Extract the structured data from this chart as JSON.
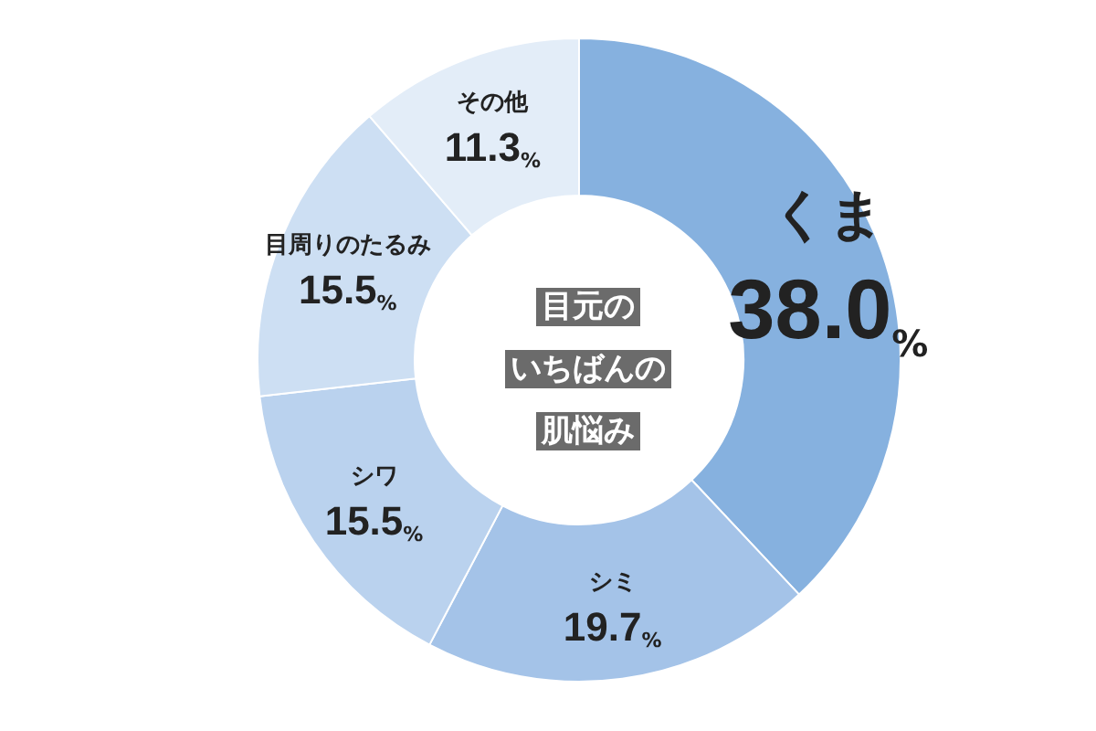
{
  "chart_data": {
    "type": "donut",
    "title": "目元のいちばんの肌悩み",
    "categories": [
      "くま",
      "シミ",
      "シワ",
      "目周りのたるみ",
      "その他"
    ],
    "values": [
      38.0,
      19.7,
      15.5,
      15.5,
      11.3
    ],
    "value_labels": [
      "38.0%",
      "19.7%",
      "15.5%",
      "15.5%",
      "11.3%"
    ],
    "colors": [
      "#86b1df",
      "#a4c3e8",
      "#bad2ee",
      "#cddff3",
      "#e3edf8"
    ],
    "legend": false
  }
}
